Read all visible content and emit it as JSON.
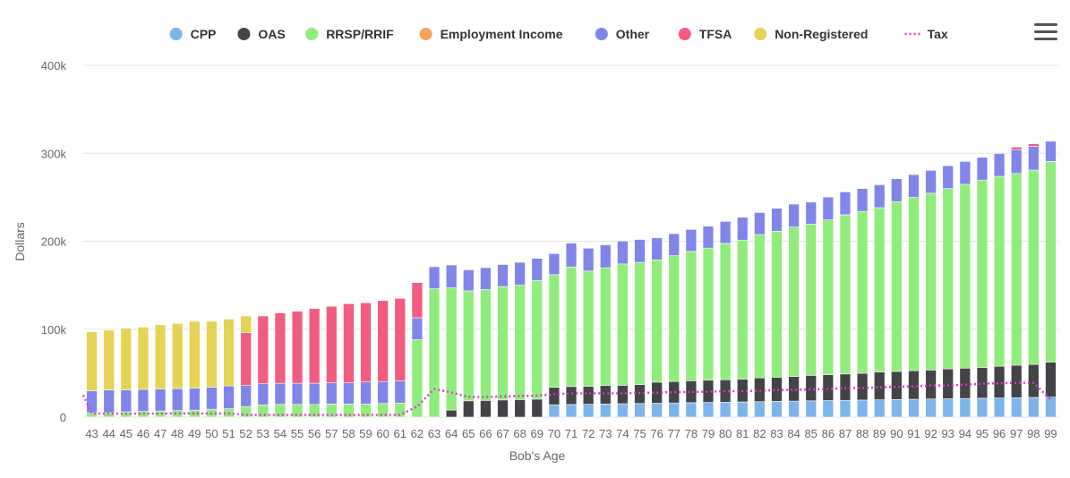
{
  "menu_icon": "hamburger-menu-icon",
  "chart_data": {
    "type": "bar",
    "stacked": true,
    "xlabel": "Bob's Age",
    "ylabel": "Dollars",
    "ylim": [
      0,
      400000
    ],
    "yticks": [
      0,
      100000,
      200000,
      300000,
      400000
    ],
    "ytick_labels": [
      "0",
      "100k",
      "200k",
      "300k",
      "400k"
    ],
    "legend_position": "top",
    "grid": true,
    "categories": [
      "43",
      "44",
      "45",
      "46",
      "47",
      "48",
      "49",
      "50",
      "51",
      "52",
      "53",
      "54",
      "55",
      "56",
      "57",
      "58",
      "59",
      "60",
      "61",
      "62",
      "63",
      "64",
      "65",
      "66",
      "67",
      "68",
      "69",
      "70",
      "71",
      "72",
      "73",
      "74",
      "75",
      "76",
      "77",
      "78",
      "79",
      "80",
      "81",
      "82",
      "83",
      "84",
      "85",
      "86",
      "87",
      "88",
      "89",
      "90",
      "91",
      "92",
      "93",
      "94",
      "95",
      "96",
      "97",
      "98",
      "99"
    ],
    "series": [
      {
        "name": "CPP",
        "color": "#7cb5ec",
        "kind": "bar",
        "values": [
          0,
          0,
          0,
          0,
          0,
          0,
          0,
          0,
          0,
          0,
          0,
          0,
          0,
          0,
          0,
          0,
          0,
          0,
          0,
          0,
          0,
          0,
          0,
          0,
          0,
          0,
          0,
          14000,
          14300,
          14600,
          14900,
          15200,
          15500,
          15800,
          16100,
          16400,
          16700,
          17000,
          17300,
          17600,
          17900,
          18200,
          18500,
          18800,
          19100,
          19400,
          19700,
          20000,
          20300,
          20600,
          20900,
          21200,
          21500,
          21800,
          22100,
          22400,
          22700
        ]
      },
      {
        "name": "OAS",
        "color": "#434348",
        "kind": "bar",
        "values": [
          0,
          0,
          0,
          0,
          0,
          0,
          0,
          0,
          0,
          0,
          0,
          0,
          0,
          0,
          0,
          0,
          0,
          0,
          0,
          0,
          0,
          8000,
          18500,
          19000,
          19500,
          20000,
          20500,
          20000,
          20500,
          20500,
          21000,
          21000,
          21500,
          24000,
          24500,
          25000,
          25500,
          25500,
          26000,
          27000,
          27500,
          28000,
          29000,
          29500,
          30000,
          30500,
          31500,
          32000,
          32500,
          33000,
          34000,
          34500,
          35000,
          36000,
          37000,
          37500,
          40000
        ]
      },
      {
        "name": "RRSP/RRIF",
        "color": "#90ed7d",
        "kind": "bar",
        "values": [
          5000,
          5000,
          6000,
          6500,
          7000,
          7500,
          8000,
          9000,
          9500,
          12000,
          14000,
          14500,
          14500,
          14500,
          15000,
          15000,
          15000,
          15500,
          16000,
          88000,
          146000,
          139000,
          125000,
          126000,
          129000,
          130000,
          135000,
          128000,
          136000,
          131000,
          134000,
          138000,
          139000,
          139000,
          143000,
          147000,
          150000,
          155000,
          158000,
          163000,
          166000,
          170000,
          172000,
          176000,
          181000,
          184000,
          187000,
          193000,
          197000,
          201000,
          205000,
          209000,
          213000,
          216000,
          218000,
          221000,
          228000
        ]
      },
      {
        "name": "Employment Income",
        "color": "#f7a35c",
        "kind": "bar",
        "values": [
          0,
          0,
          0,
          0,
          0,
          0,
          0,
          0,
          0,
          0,
          0,
          0,
          0,
          0,
          0,
          0,
          0,
          0,
          0,
          0,
          0,
          0,
          0,
          0,
          0,
          0,
          0,
          0,
          0,
          0,
          0,
          0,
          0,
          0,
          0,
          0,
          0,
          0,
          0,
          0,
          0,
          0,
          0,
          0,
          0,
          0,
          0,
          0,
          0,
          0,
          0,
          0,
          0,
          0,
          0,
          0,
          0
        ]
      },
      {
        "name": "Other",
        "color": "#8085e9",
        "kind": "bar",
        "values": [
          25000,
          26000,
          25000,
          25000,
          25000,
          25000,
          25000,
          25000,
          26000,
          24000,
          24000,
          24000,
          24000,
          24000,
          24000,
          24000,
          25000,
          25000,
          25000,
          25000,
          25000,
          26000,
          24000,
          25000,
          25000,
          26000,
          25000,
          24000,
          27000,
          26000,
          26000,
          26000,
          26000,
          25000,
          25000,
          25000,
          25000,
          25000,
          26000,
          25000,
          26000,
          26000,
          25000,
          26000,
          26000,
          26000,
          26000,
          26000,
          26000,
          26000,
          26000,
          26000,
          26000,
          26000,
          27000,
          27000,
          23000
        ]
      },
      {
        "name": "TFSA",
        "color": "#f15c80",
        "kind": "bar",
        "values": [
          0,
          0,
          0,
          0,
          0,
          0,
          0,
          0,
          0,
          60000,
          77000,
          80000,
          82000,
          85000,
          87000,
          90000,
          90000,
          92000,
          94000,
          40000,
          0,
          0,
          0,
          0,
          0,
          0,
          0,
          0,
          0,
          0,
          0,
          0,
          0,
          0,
          0,
          0,
          0,
          0,
          0,
          0,
          0,
          0,
          0,
          0,
          0,
          0,
          0,
          0,
          0,
          0,
          0,
          0,
          0,
          0,
          3000,
          3000,
          0
        ]
      },
      {
        "name": "Non-Registered",
        "color": "#e4d354",
        "kind": "bar",
        "values": [
          67000,
          68000,
          70000,
          71000,
          73000,
          74000,
          76000,
          75000,
          76000,
          19000,
          0,
          0,
          0,
          0,
          0,
          0,
          0,
          0,
          0,
          0,
          0,
          0,
          0,
          0,
          0,
          0,
          0,
          0,
          0,
          0,
          0,
          0,
          0,
          0,
          0,
          0,
          0,
          0,
          0,
          0,
          0,
          0,
          0,
          0,
          0,
          0,
          0,
          0,
          0,
          0,
          0,
          0,
          0,
          0,
          0,
          0,
          0
        ]
      },
      {
        "name": "Tax",
        "color": "#e034c8",
        "kind": "line",
        "values": [
          4000,
          4000,
          4000,
          4000,
          4000,
          4200,
          4200,
          4200,
          4200,
          2500,
          2500,
          2500,
          2500,
          2500,
          2500,
          2500,
          2500,
          2500,
          2500,
          12000,
          32000,
          28000,
          23000,
          23000,
          23500,
          24000,
          24500,
          26000,
          27000,
          27000,
          27000,
          27000,
          27500,
          28000,
          28500,
          28500,
          29000,
          29500,
          29500,
          30000,
          31000,
          31000,
          31500,
          32000,
          33000,
          33000,
          34000,
          34500,
          35000,
          36000,
          36000,
          37000,
          38000,
          38500,
          39000,
          39000,
          20000
        ]
      }
    ]
  }
}
